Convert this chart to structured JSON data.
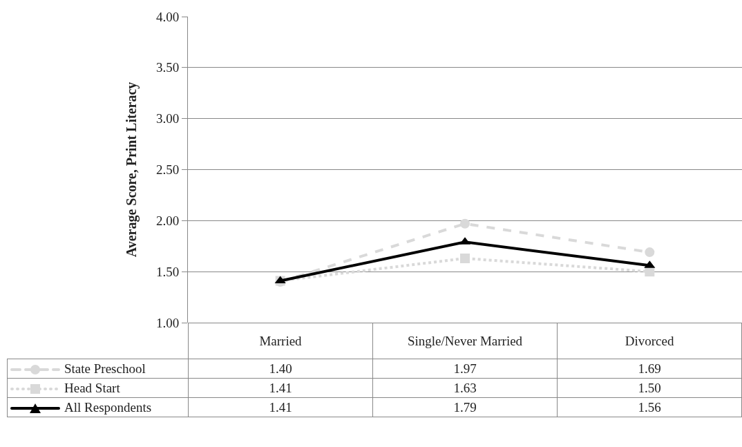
{
  "chart_data": {
    "type": "line",
    "ylabel": "Average Score, Print Literacy",
    "categories": [
      "Married",
      "Single/Never Married",
      "Divorced"
    ],
    "series": [
      {
        "name": "State Preschool",
        "color": "#d9d9d9",
        "marker": "circle",
        "line_style": "dashed",
        "values": [
          1.4,
          1.97,
          1.69
        ],
        "value_labels": [
          "1.40",
          "1.97",
          "1.69"
        ]
      },
      {
        "name": "Head Start",
        "color": "#d9d9d9",
        "marker": "square",
        "line_style": "dotted",
        "values": [
          1.41,
          1.63,
          1.5
        ],
        "value_labels": [
          "1.41",
          "1.63",
          "1.50"
        ]
      },
      {
        "name": "All Respondents",
        "color": "#000000",
        "marker": "triangle",
        "line_style": "solid",
        "values": [
          1.41,
          1.79,
          1.56
        ],
        "value_labels": [
          "1.41",
          "1.79",
          "1.56"
        ]
      }
    ],
    "ylim": [
      1,
      4
    ],
    "yticks": [
      {
        "value": 1,
        "label": "1.00"
      },
      {
        "value": 1.5,
        "label": "1.50"
      },
      {
        "value": 2,
        "label": "2.00"
      },
      {
        "value": 2.5,
        "label": "2.50"
      },
      {
        "value": 3,
        "label": "3.00"
      },
      {
        "value": 3.5,
        "label": "3.50"
      },
      {
        "value": 4,
        "label": "4.00"
      }
    ],
    "grid": "y",
    "legend": "bottom left"
  }
}
